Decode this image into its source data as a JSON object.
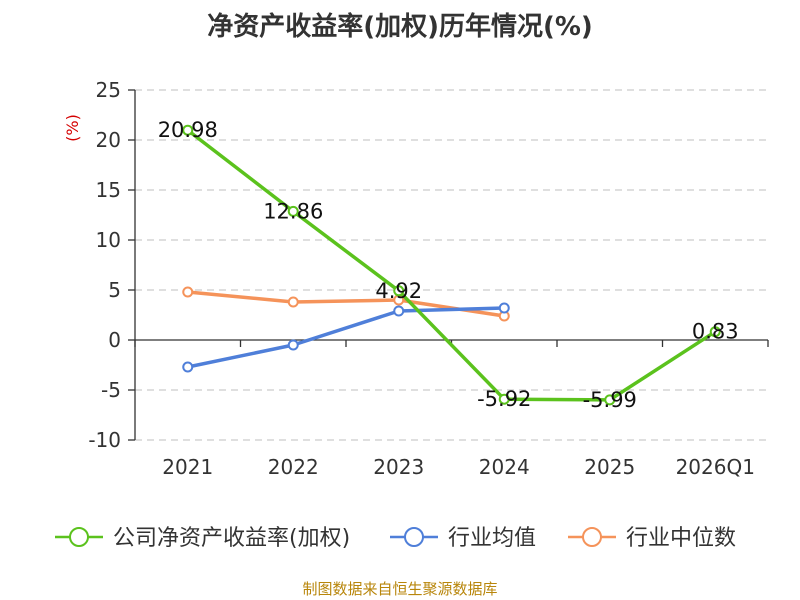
{
  "chart_data": {
    "type": "line",
    "title": "净资产收益率(加权)历年情况(%)",
    "ylabel": "(%)",
    "categories": [
      "2021",
      "2022",
      "2023",
      "2024",
      "2025",
      "2026Q1"
    ],
    "ylim": [
      -10,
      25
    ],
    "yticks": [
      25,
      20,
      15,
      10,
      5,
      0,
      -5,
      -10
    ],
    "grid": true,
    "legend_position": "bottom",
    "series": [
      {
        "name": "公司净资产收益率(加权)",
        "color": "#5bc21d",
        "values": [
          20.98,
          12.86,
          4.92,
          -5.92,
          -5.99,
          0.83
        ],
        "labels": [
          "20.98",
          "12.86",
          "4.92",
          "-5.92",
          "-5.99",
          "0.83"
        ]
      },
      {
        "name": "行业均值",
        "color": "#4f7fd9",
        "values": [
          -2.7,
          -0.5,
          2.9,
          3.2,
          null,
          null
        ]
      },
      {
        "name": "行业中位数",
        "color": "#f5935a",
        "values": [
          4.8,
          3.8,
          4.0,
          2.4,
          null,
          null
        ]
      }
    ]
  },
  "source_text": "制图数据来自恒生聚源数据库"
}
